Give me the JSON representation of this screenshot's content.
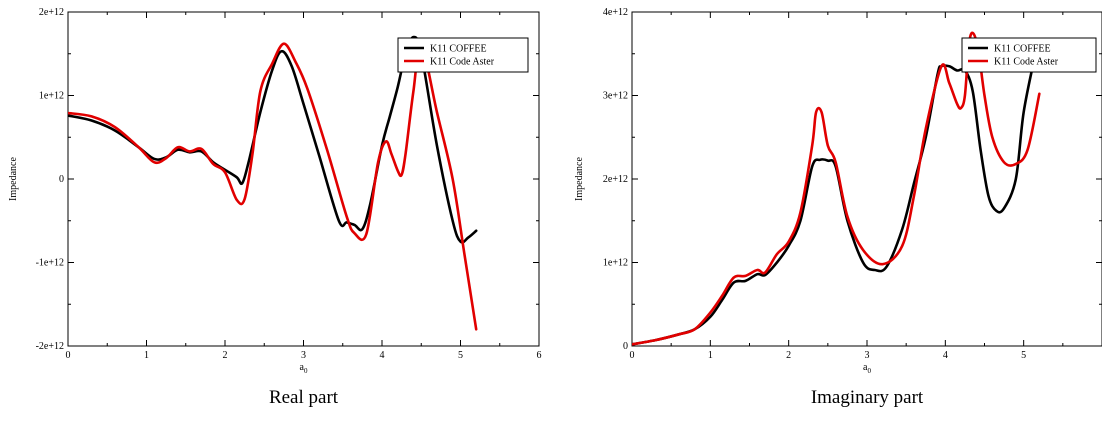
{
  "chart_data": [
    {
      "type": "line",
      "caption": "Real part",
      "xlabel": "a",
      "xlabel_sub": "0",
      "ylabel": "Impedance",
      "xlim": [
        0,
        6
      ],
      "ylim": [
        -2000000000000.0,
        2000000000000.0
      ],
      "xticks": [
        0,
        1,
        2,
        3,
        4,
        5,
        6
      ],
      "xtick_labels": [
        "0",
        "1",
        "2",
        "3",
        "4",
        "5",
        "6"
      ],
      "yticks": [
        -2000000000000.0,
        -1000000000000.0,
        0,
        1000000000000.0,
        2000000000000.0
      ],
      "ytick_labels": [
        "-2e+12",
        "-1e+12",
        "0",
        "1e+12",
        "2e+12"
      ],
      "grid": false,
      "legend_position": "top-right",
      "series": [
        {
          "name": "K11 COFFEE",
          "color": "#000000",
          "x": [
            0,
            0.3,
            0.6,
            0.9,
            1.1,
            1.25,
            1.4,
            1.55,
            1.7,
            1.85,
            2.0,
            2.15,
            2.22,
            2.3,
            2.45,
            2.6,
            2.72,
            2.85,
            3.0,
            3.2,
            3.45,
            3.55,
            3.65,
            3.75,
            3.85,
            4.0,
            4.1,
            4.2,
            4.3,
            4.4,
            4.5,
            4.7,
            4.9,
            5.0,
            5.1,
            5.2
          ],
          "y": [
            760000000000.0,
            700000000000.0,
            580000000000.0,
            380000000000.0,
            240000000000.0,
            260000000000.0,
            350000000000.0,
            320000000000.0,
            330000000000.0,
            200000000000.0,
            110000000000.0,
            20000000000.0,
            -50000000000.0,
            200000000000.0,
            800000000000.0,
            1300000000000.0,
            1530000000000.0,
            1350000000000.0,
            900000000000.0,
            280000000000.0,
            -500000000000.0,
            -520000000000.0,
            -550000000000.0,
            -600000000000.0,
            -300000000000.0,
            400000000000.0,
            750000000000.0,
            1100000000000.0,
            1500000000000.0,
            1700000000000.0,
            1500000000000.0,
            400000000000.0,
            -500000000000.0,
            -750000000000.0,
            -700000000000.0,
            -620000000000.0
          ]
        },
        {
          "name": "K11 Code Aster",
          "color": "#e10000",
          "x": [
            0,
            0.3,
            0.6,
            0.9,
            1.1,
            1.25,
            1.4,
            1.55,
            1.7,
            1.85,
            2.0,
            2.15,
            2.25,
            2.35,
            2.45,
            2.6,
            2.75,
            2.9,
            3.05,
            3.3,
            3.55,
            3.65,
            3.8,
            3.95,
            4.05,
            4.12,
            4.2,
            4.25,
            4.3,
            4.4,
            4.5,
            4.7,
            4.9,
            5.05,
            5.2
          ],
          "y": [
            790000000000.0,
            750000000000.0,
            620000000000.0,
            380000000000.0,
            200000000000.0,
            250000000000.0,
            380000000000.0,
            330000000000.0,
            360000000000.0,
            180000000000.0,
            80000000000.0,
            -250000000000.0,
            -240000000000.0,
            300000000000.0,
            1050000000000.0,
            1380000000000.0,
            1620000000000.0,
            1400000000000.0,
            1080000000000.0,
            350000000000.0,
            -450000000000.0,
            -650000000000.0,
            -660000000000.0,
            200000000000.0,
            450000000000.0,
            300000000000.0,
            100000000000.0,
            50000000000.0,
            300000000000.0,
            1050000000000.0,
            1600000000000.0,
            800000000000.0,
            0.0,
            -900000000000.0,
            -1800000000000.0
          ]
        }
      ]
    },
    {
      "type": "line",
      "caption": "Imaginary part",
      "xlabel": "a",
      "xlabel_sub": "0",
      "ylabel": "Impedance",
      "xlim": [
        0,
        6
      ],
      "ylim": [
        0,
        4000000000000.0
      ],
      "xticks": [
        0,
        1,
        2,
        3,
        4,
        5
      ],
      "xtick_labels": [
        "0",
        "1",
        "2",
        "3",
        "4",
        "5"
      ],
      "yticks": [
        0,
        1000000000000.0,
        2000000000000.0,
        3000000000000.0,
        4000000000000.0
      ],
      "ytick_labels": [
        "0",
        "1e+12",
        "2e+12",
        "3e+12",
        "4e+12"
      ],
      "grid": false,
      "legend_position": "top-right",
      "series": [
        {
          "name": "K11 COFFEE",
          "color": "#000000",
          "x": [
            0,
            0.3,
            0.6,
            0.8,
            1.0,
            1.15,
            1.3,
            1.45,
            1.6,
            1.7,
            1.85,
            2.0,
            2.15,
            2.3,
            2.4,
            2.5,
            2.6,
            2.75,
            2.95,
            3.1,
            3.25,
            3.45,
            3.6,
            3.75,
            3.9,
            3.95,
            4.05,
            4.15,
            4.25,
            4.35,
            4.45,
            4.55,
            4.65,
            4.75,
            4.9,
            5.0,
            5.15
          ],
          "y": [
            20000000000.0,
            70000000000.0,
            140000000000.0,
            200000000000.0,
            350000000000.0,
            550000000000.0,
            760000000000.0,
            780000000000.0,
            860000000000.0,
            850000000000.0,
            1000000000000.0,
            1200000000000.0,
            1500000000000.0,
            2150000000000.0,
            2230000000000.0,
            2220000000000.0,
            2150000000000.0,
            1500000000000.0,
            1000000000000.0,
            910000000000.0,
            950000000000.0,
            1400000000000.0,
            1950000000000.0,
            2500000000000.0,
            3250000000000.0,
            3350000000000.0,
            3350000000000.0,
            3300000000000.0,
            3300000000000.0,
            3050000000000.0,
            2350000000000.0,
            1800000000000.0,
            1620000000000.0,
            1650000000000.0,
            2000000000000.0,
            2800000000000.0,
            3500000000000.0
          ]
        },
        {
          "name": "K11 Code Aster",
          "color": "#e10000",
          "x": [
            0,
            0.3,
            0.6,
            0.8,
            1.0,
            1.15,
            1.3,
            1.45,
            1.6,
            1.7,
            1.85,
            2.0,
            2.15,
            2.3,
            2.35,
            2.42,
            2.5,
            2.6,
            2.75,
            2.95,
            3.2,
            3.45,
            3.6,
            3.75,
            3.95,
            4.05,
            4.15,
            4.2,
            4.25,
            4.3,
            4.35,
            4.42,
            4.5,
            4.6,
            4.75,
            4.9,
            5.05,
            5.2
          ],
          "y": [
            20000000000.0,
            70000000000.0,
            140000000000.0,
            200000000000.0,
            400000000000.0,
            600000000000.0,
            820000000000.0,
            840000000000.0,
            910000000000.0,
            880000000000.0,
            1100000000000.0,
            1250000000000.0,
            1600000000000.0,
            2400000000000.0,
            2800000000000.0,
            2800000000000.0,
            2400000000000.0,
            2200000000000.0,
            1550000000000.0,
            1150000000000.0,
            980000000000.0,
            1200000000000.0,
            1800000000000.0,
            2600000000000.0,
            3350000000000.0,
            3150000000000.0,
            2900000000000.0,
            2850000000000.0,
            3000000000000.0,
            3600000000000.0,
            3750000000000.0,
            3550000000000.0,
            3000000000000.0,
            2500000000000.0,
            2200000000000.0,
            2180000000000.0,
            2350000000000.0,
            3020000000000.0
          ]
        }
      ]
    }
  ]
}
